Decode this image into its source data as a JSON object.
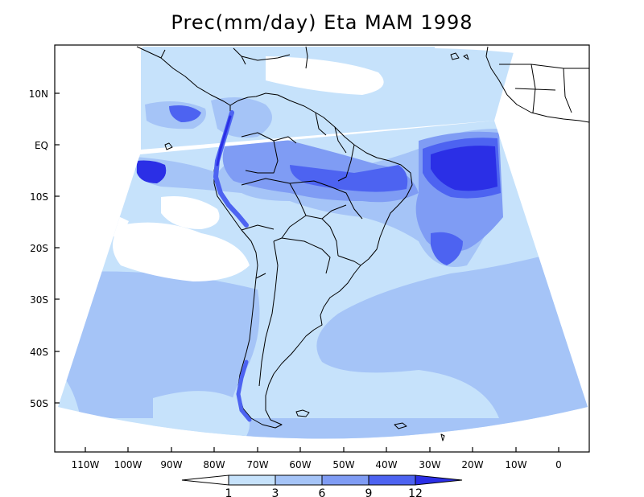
{
  "title": "Prec(mm/day) Eta MAM 1998",
  "variable": "Precipitation",
  "units": "mm/day",
  "model": "Eta",
  "season": "MAM",
  "year": "1998",
  "lat_labels": [
    "10N",
    "EQ",
    "10S",
    "20S",
    "30S",
    "40S",
    "50S"
  ],
  "lon_labels": [
    "110W",
    "100W",
    "90W",
    "80W",
    "70W",
    "60W",
    "50W",
    "40W",
    "30W",
    "20W",
    "10W",
    "0"
  ],
  "colorbar": {
    "levels": [
      "1",
      "3",
      "6",
      "9",
      "12"
    ],
    "colors": [
      "#ffffff",
      "#c6e2fb",
      "#a5c4f7",
      "#7f9cf4",
      "#4d63f1",
      "#2b2fe6"
    ]
  },
  "colors": {
    "coast": "#000000",
    "land_bg": "#ffffff",
    "light_blue": "#c6e2fb",
    "mid_blue": "#a5c4f7",
    "medium_blue": "#7f9cf4",
    "dark_blue": "#4d63f1",
    "deep_blue": "#2b2fe6"
  }
}
